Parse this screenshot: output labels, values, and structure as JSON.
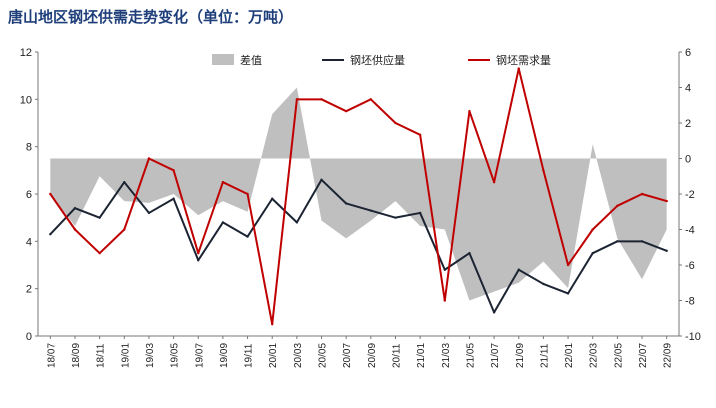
{
  "chart_data": {
    "type": "line",
    "title": "唐山地区钢坯供需走势变化（单位：万吨）",
    "x": [
      "18/07",
      "18/09",
      "18/11",
      "19/01",
      "19/03",
      "19/05",
      "19/07",
      "19/09",
      "19/11",
      "20/01",
      "20/03",
      "20/05",
      "20/07",
      "20/09",
      "20/11",
      "21/01",
      "21/03",
      "21/05",
      "21/07",
      "21/09",
      "21/11",
      "22/01",
      "22/03",
      "22/05",
      "22/07",
      "22/09"
    ],
    "y_left": {
      "min": 0,
      "max": 12,
      "ticks": [
        0,
        2,
        4,
        6,
        8,
        10,
        12
      ]
    },
    "y_right": {
      "min": -10,
      "max": 6,
      "ticks": [
        -10,
        -8,
        -6,
        -4,
        -2,
        0,
        2,
        4,
        6
      ]
    },
    "series": [
      {
        "name": "差值",
        "axis": "right",
        "kind": "area",
        "color": "#bfbfbf",
        "values": [
          -2.0,
          -3.8,
          -1.0,
          -2.4,
          -2.5,
          -2.0,
          -3.2,
          -2.4,
          -3.0,
          2.5,
          4.0,
          -3.5,
          -4.5,
          -3.5,
          -2.4,
          -3.8,
          -4.0,
          -8.0,
          -7.5,
          -7.0,
          -5.8,
          -7.3,
          0.8,
          -4.5,
          -6.8,
          -4.0
        ]
      },
      {
        "name": "钢坯供应量",
        "axis": "left",
        "kind": "line",
        "color": "#1c2433",
        "values": [
          4.3,
          5.4,
          5.0,
          6.5,
          5.2,
          5.8,
          3.2,
          4.8,
          4.2,
          5.8,
          4.8,
          6.6,
          5.6,
          5.3,
          5.0,
          5.2,
          2.8,
          3.5,
          1.0,
          2.8,
          2.2,
          1.8,
          3.5,
          4.0,
          4.0,
          3.6
        ]
      },
      {
        "name": "钢坯需求量",
        "axis": "left",
        "kind": "line",
        "color": "#c00000",
        "values": [
          6.0,
          4.5,
          3.5,
          4.5,
          7.5,
          7.0,
          3.5,
          6.5,
          6.0,
          0.5,
          10.0,
          10.0,
          9.5,
          10.0,
          9.0,
          8.5,
          1.5,
          9.5,
          6.5,
          11.3,
          7.0,
          3.0,
          4.5,
          5.5,
          6.0,
          5.7
        ]
      }
    ],
    "legend": {
      "position": "top",
      "entries": [
        "差值",
        "钢坯供应量",
        "钢坯需求量"
      ]
    },
    "grid": false
  }
}
